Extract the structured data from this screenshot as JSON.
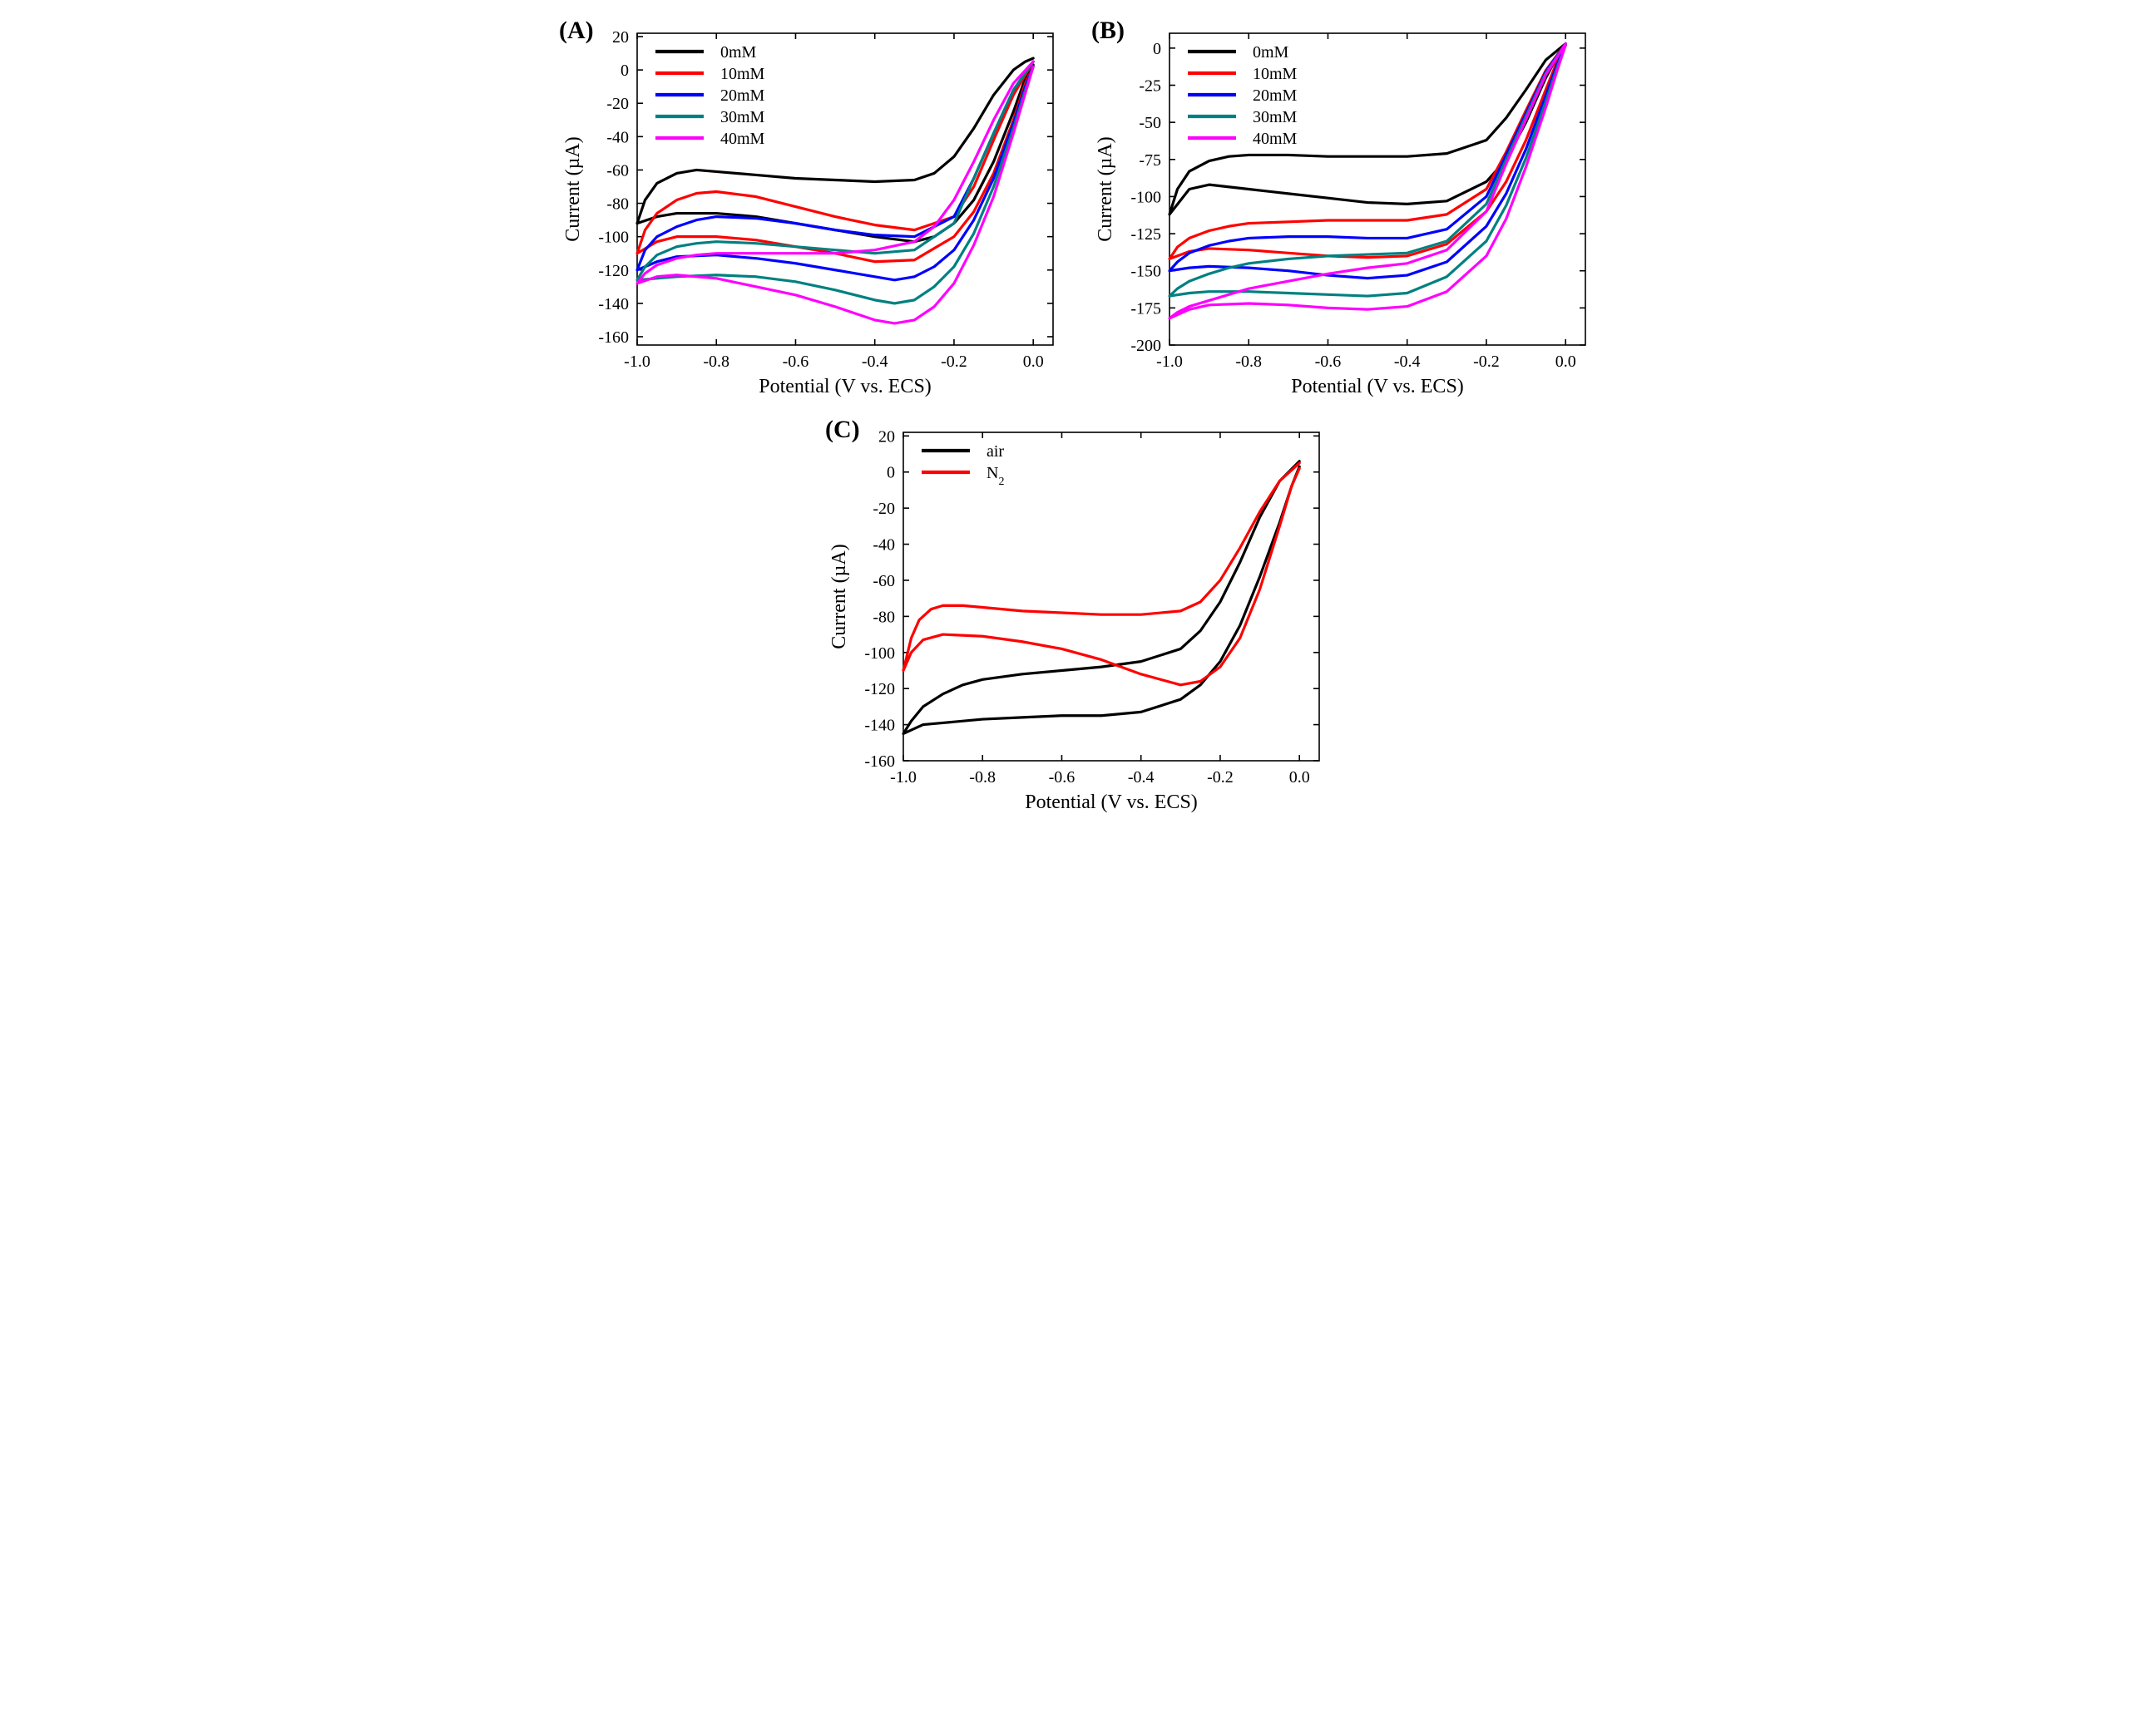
{
  "figure": {
    "background_color": "#ffffff",
    "font_family": "Times New Roman",
    "panel_label_fontsize": 30,
    "axis_label_fontsize": 24,
    "tick_fontsize": 20,
    "legend_fontsize": 20,
    "line_width": 3.2,
    "axis_line_width": 1.6,
    "tick_length": 7
  },
  "panelA": {
    "label": "(A)",
    "type": "line",
    "xlabel": "Potential (V vs. ECS)",
    "ylabel": "Current (µA)",
    "xlim": [
      -1.0,
      0.05
    ],
    "ylim": [
      -165,
      22
    ],
    "xticks": [
      -1.0,
      -0.8,
      -0.6,
      -0.4,
      -0.2,
      0.0
    ],
    "yticks": [
      -160,
      -140,
      -120,
      -100,
      -80,
      -60,
      -40,
      -20,
      0,
      20
    ],
    "legend": {
      "items": [
        "0mM",
        "10mM",
        "20mM",
        "30mM",
        "40mM"
      ],
      "colors": [
        "#000000",
        "#ff0000",
        "#0000ff",
        "#008080",
        "#ff00ff"
      ],
      "position": "upper-left"
    },
    "series": [
      {
        "name": "0mM",
        "color": "#000000",
        "x": [
          0.0,
          -0.02,
          -0.05,
          -0.1,
          -0.15,
          -0.2,
          -0.25,
          -0.3,
          -0.4,
          -0.5,
          -0.6,
          -0.7,
          -0.8,
          -0.9,
          -0.95,
          -1.0,
          -0.98,
          -0.95,
          -0.9,
          -0.85,
          -0.8,
          -0.7,
          -0.6,
          -0.5,
          -0.4,
          -0.3,
          -0.25,
          -0.2,
          -0.15,
          -0.1,
          -0.05,
          -0.02,
          0.0
        ],
        "y": [
          3,
          -5,
          -25,
          -55,
          -78,
          -92,
          -100,
          -103,
          -100,
          -96,
          -92,
          -88,
          -86,
          -86,
          -88,
          -92,
          -78,
          -68,
          -62,
          -60,
          -61,
          -63,
          -65,
          -66,
          -67,
          -66,
          -62,
          -52,
          -35,
          -15,
          0,
          5,
          7
        ]
      },
      {
        "name": "10mM",
        "color": "#ff0000",
        "x": [
          0.0,
          -0.02,
          -0.05,
          -0.1,
          -0.15,
          -0.2,
          -0.3,
          -0.4,
          -0.5,
          -0.6,
          -0.7,
          -0.8,
          -0.9,
          -0.95,
          -1.0,
          -0.98,
          -0.95,
          -0.9,
          -0.85,
          -0.8,
          -0.7,
          -0.6,
          -0.5,
          -0.4,
          -0.3,
          -0.2,
          -0.15,
          -0.1,
          -0.05,
          0.0
        ],
        "y": [
          2,
          -8,
          -30,
          -62,
          -85,
          -100,
          -114,
          -115,
          -110,
          -106,
          -102,
          -100,
          -100,
          -103,
          -110,
          -96,
          -86,
          -78,
          -74,
          -73,
          -76,
          -82,
          -88,
          -93,
          -96,
          -88,
          -70,
          -42,
          -15,
          5
        ]
      },
      {
        "name": "20mM",
        "color": "#0000ff",
        "x": [
          0.0,
          -0.02,
          -0.05,
          -0.1,
          -0.15,
          -0.2,
          -0.25,
          -0.3,
          -0.35,
          -0.4,
          -0.5,
          -0.6,
          -0.7,
          -0.8,
          -0.9,
          -0.95,
          -1.0,
          -0.98,
          -0.95,
          -0.9,
          -0.85,
          -0.8,
          -0.7,
          -0.6,
          -0.5,
          -0.4,
          -0.3,
          -0.2,
          -0.15,
          -0.1,
          -0.05,
          0.0
        ],
        "y": [
          2,
          -10,
          -32,
          -65,
          -90,
          -108,
          -118,
          -124,
          -126,
          -124,
          -120,
          -116,
          -113,
          -111,
          -112,
          -115,
          -120,
          -108,
          -100,
          -94,
          -90,
          -88,
          -89,
          -92,
          -96,
          -99,
          -100,
          -88,
          -65,
          -38,
          -12,
          5
        ]
      },
      {
        "name": "30mM",
        "color": "#008080",
        "x": [
          0.0,
          -0.02,
          -0.05,
          -0.1,
          -0.15,
          -0.2,
          -0.25,
          -0.3,
          -0.35,
          -0.4,
          -0.5,
          -0.6,
          -0.7,
          -0.8,
          -0.9,
          -0.95,
          -1.0,
          -0.98,
          -0.95,
          -0.9,
          -0.85,
          -0.8,
          -0.7,
          -0.6,
          -0.5,
          -0.4,
          -0.3,
          -0.2,
          -0.15,
          -0.1,
          -0.05,
          0.0
        ],
        "y": [
          2,
          -12,
          -35,
          -70,
          -98,
          -118,
          -130,
          -138,
          -140,
          -138,
          -132,
          -127,
          -124,
          -123,
          -124,
          -125,
          -126,
          -118,
          -111,
          -106,
          -104,
          -103,
          -104,
          -106,
          -108,
          -110,
          -108,
          -92,
          -65,
          -38,
          -12,
          5
        ]
      },
      {
        "name": "40mM",
        "color": "#ff00ff",
        "x": [
          0.0,
          -0.02,
          -0.05,
          -0.1,
          -0.15,
          -0.2,
          -0.25,
          -0.3,
          -0.35,
          -0.4,
          -0.5,
          -0.6,
          -0.7,
          -0.8,
          -0.9,
          -0.95,
          -1.0,
          -0.98,
          -0.95,
          -0.9,
          -0.85,
          -0.8,
          -0.7,
          -0.6,
          -0.5,
          -0.4,
          -0.3,
          -0.25,
          -0.2,
          -0.15,
          -0.1,
          -0.05,
          0.0
        ],
        "y": [
          2,
          -14,
          -38,
          -76,
          -105,
          -128,
          -142,
          -150,
          -152,
          -150,
          -142,
          -135,
          -130,
          -125,
          -123,
          -124,
          -128,
          -122,
          -117,
          -113,
          -111,
          -110,
          -110,
          -110,
          -110,
          -108,
          -103,
          -94,
          -78,
          -55,
          -30,
          -8,
          5
        ]
      }
    ]
  },
  "panelB": {
    "label": "(B)",
    "type": "line",
    "xlabel": "Potential (V vs. ECS)",
    "ylabel": "Current (µA)",
    "xlim": [
      -1.0,
      0.05
    ],
    "ylim": [
      -200,
      10
    ],
    "xticks": [
      -1.0,
      -0.8,
      -0.6,
      -0.4,
      -0.2,
      0.0
    ],
    "yticks": [
      -200,
      -175,
      -150,
      -125,
      -100,
      -75,
      -50,
      -25,
      0
    ],
    "legend": {
      "items": [
        "0mM",
        "10mM",
        "20mM",
        "30mM",
        "40mM"
      ],
      "colors": [
        "#000000",
        "#ff0000",
        "#0000ff",
        "#008080",
        "#ff00ff"
      ],
      "position": "upper-left"
    },
    "series": [
      {
        "name": "0mM",
        "color": "#000000",
        "x": [
          0.0,
          -0.02,
          -0.05,
          -0.1,
          -0.15,
          -0.2,
          -0.3,
          -0.4,
          -0.5,
          -0.6,
          -0.7,
          -0.8,
          -0.9,
          -0.95,
          -1.0,
          -0.98,
          -0.95,
          -0.9,
          -0.85,
          -0.8,
          -0.7,
          -0.6,
          -0.5,
          -0.4,
          -0.3,
          -0.2,
          -0.15,
          -0.1,
          -0.05,
          0.0
        ],
        "y": [
          2,
          -5,
          -20,
          -50,
          -75,
          -90,
          -103,
          -105,
          -104,
          -101,
          -98,
          -95,
          -92,
          -95,
          -112,
          -95,
          -83,
          -76,
          -73,
          -72,
          -72,
          -73,
          -73,
          -73,
          -71,
          -62,
          -47,
          -28,
          -8,
          3
        ]
      },
      {
        "name": "10mM",
        "color": "#ff0000",
        "x": [
          0.0,
          -0.02,
          -0.05,
          -0.1,
          -0.15,
          -0.2,
          -0.3,
          -0.4,
          -0.5,
          -0.6,
          -0.7,
          -0.8,
          -0.9,
          -0.95,
          -1.0,
          -0.98,
          -0.95,
          -0.9,
          -0.85,
          -0.8,
          -0.7,
          -0.6,
          -0.5,
          -0.4,
          -0.3,
          -0.2,
          -0.15,
          -0.1,
          -0.05,
          0.0
        ],
        "y": [
          2,
          -8,
          -28,
          -62,
          -90,
          -110,
          -132,
          -140,
          -141,
          -140,
          -138,
          -136,
          -135,
          -137,
          -142,
          -134,
          -128,
          -123,
          -120,
          -118,
          -117,
          -116,
          -116,
          -116,
          -112,
          -95,
          -70,
          -42,
          -15,
          3
        ]
      },
      {
        "name": "20mM",
        "color": "#0000ff",
        "x": [
          0.0,
          -0.02,
          -0.05,
          -0.1,
          -0.15,
          -0.2,
          -0.3,
          -0.4,
          -0.5,
          -0.6,
          -0.7,
          -0.8,
          -0.9,
          -0.95,
          -1.0,
          -0.98,
          -0.95,
          -0.9,
          -0.85,
          -0.8,
          -0.7,
          -0.6,
          -0.5,
          -0.4,
          -0.3,
          -0.2,
          -0.15,
          -0.1,
          -0.05,
          0.0
        ],
        "y": [
          2,
          -10,
          -32,
          -68,
          -98,
          -120,
          -144,
          -153,
          -155,
          -153,
          -150,
          -148,
          -147,
          -148,
          -150,
          -144,
          -138,
          -133,
          -130,
          -128,
          -127,
          -127,
          -128,
          -128,
          -122,
          -100,
          -72,
          -44,
          -16,
          3
        ]
      },
      {
        "name": "30mM",
        "color": "#008080",
        "x": [
          0.0,
          -0.02,
          -0.05,
          -0.1,
          -0.15,
          -0.2,
          -0.3,
          -0.4,
          -0.5,
          -0.6,
          -0.7,
          -0.8,
          -0.9,
          -0.95,
          -1.0,
          -0.98,
          -0.95,
          -0.9,
          -0.85,
          -0.8,
          -0.7,
          -0.6,
          -0.5,
          -0.4,
          -0.3,
          -0.2,
          -0.15,
          -0.1,
          -0.05,
          0.0
        ],
        "y": [
          2,
          -12,
          -36,
          -74,
          -106,
          -130,
          -154,
          -165,
          -167,
          -166,
          -165,
          -164,
          -164,
          -165,
          -167,
          -162,
          -157,
          -152,
          -148,
          -145,
          -142,
          -140,
          -139,
          -138,
          -130,
          -105,
          -75,
          -46,
          -17,
          3
        ]
      },
      {
        "name": "40mM",
        "color": "#ff00ff",
        "x": [
          0.0,
          -0.02,
          -0.05,
          -0.1,
          -0.15,
          -0.2,
          -0.3,
          -0.4,
          -0.5,
          -0.6,
          -0.7,
          -0.8,
          -0.9,
          -0.95,
          -1.0,
          -0.98,
          -0.95,
          -0.9,
          -0.85,
          -0.8,
          -0.7,
          -0.6,
          -0.5,
          -0.4,
          -0.3,
          -0.2,
          -0.15,
          -0.1,
          -0.05,
          0.0
        ],
        "y": [
          2,
          -14,
          -40,
          -80,
          -115,
          -140,
          -164,
          -174,
          -176,
          -175,
          -173,
          -172,
          -173,
          -176,
          -182,
          -178,
          -174,
          -170,
          -166,
          -162,
          -157,
          -152,
          -148,
          -145,
          -136,
          -110,
          -78,
          -48,
          -18,
          3
        ]
      }
    ]
  },
  "panelC": {
    "label": "(C)",
    "type": "line",
    "xlabel": "Potential (V vs. ECS)",
    "ylabel": "Current (µA)",
    "xlim": [
      -1.0,
      0.05
    ],
    "ylim": [
      -160,
      22
    ],
    "xticks": [
      -1.0,
      -0.8,
      -0.6,
      -0.4,
      -0.2,
      0.0
    ],
    "yticks": [
      -160,
      -140,
      -120,
      -100,
      -80,
      -60,
      -40,
      -20,
      0,
      20
    ],
    "legend": {
      "items": [
        "air",
        "N2"
      ],
      "colors": [
        "#000000",
        "#ff0000"
      ],
      "position": "upper-left",
      "subscript": [
        false,
        true
      ]
    },
    "series": [
      {
        "name": "air",
        "color": "#000000",
        "x": [
          0.0,
          -0.02,
          -0.05,
          -0.1,
          -0.15,
          -0.2,
          -0.25,
          -0.3,
          -0.4,
          -0.5,
          -0.6,
          -0.7,
          -0.8,
          -0.9,
          -0.95,
          -1.0,
          -0.98,
          -0.95,
          -0.9,
          -0.85,
          -0.8,
          -0.7,
          -0.6,
          -0.5,
          -0.4,
          -0.3,
          -0.25,
          -0.2,
          -0.15,
          -0.1,
          -0.05,
          0.0
        ],
        "y": [
          3,
          -8,
          -28,
          -58,
          -85,
          -105,
          -118,
          -126,
          -133,
          -135,
          -135,
          -136,
          -137,
          -139,
          -140,
          -145,
          -138,
          -130,
          -123,
          -118,
          -115,
          -112,
          -110,
          -108,
          -105,
          -98,
          -88,
          -72,
          -50,
          -25,
          -5,
          6
        ]
      },
      {
        "name": "N2",
        "color": "#ff0000",
        "x": [
          0.0,
          -0.02,
          -0.05,
          -0.1,
          -0.15,
          -0.2,
          -0.25,
          -0.3,
          -0.4,
          -0.5,
          -0.6,
          -0.7,
          -0.8,
          -0.9,
          -0.95,
          -0.98,
          -1.0,
          -0.98,
          -0.96,
          -0.93,
          -0.9,
          -0.85,
          -0.8,
          -0.7,
          -0.6,
          -0.5,
          -0.4,
          -0.3,
          -0.25,
          -0.2,
          -0.15,
          -0.1,
          -0.05,
          0.0
        ],
        "y": [
          2,
          -8,
          -30,
          -65,
          -92,
          -108,
          -116,
          -118,
          -112,
          -104,
          -98,
          -94,
          -91,
          -90,
          -93,
          -100,
          -110,
          -92,
          -82,
          -76,
          -74,
          -74,
          -75,
          -77,
          -78,
          -79,
          -79,
          -77,
          -72,
          -60,
          -42,
          -22,
          -5,
          5
        ]
      }
    ]
  }
}
